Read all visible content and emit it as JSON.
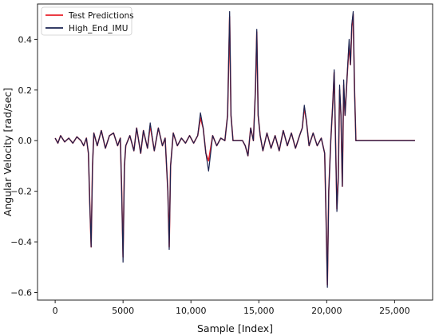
{
  "chart_data": {
    "type": "line",
    "title": "",
    "xlabel": "Sample [Index]",
    "ylabel": "Angular Velocity [rad/sec]",
    "xlim": [
      -1300,
      27800
    ],
    "ylim": [
      -0.63,
      0.54
    ],
    "xticks": [
      0,
      5000,
      10000,
      15000,
      20000,
      25000
    ],
    "xtick_labels": [
      "0",
      "5000",
      "10,000",
      "15,000",
      "20,000",
      "25,000"
    ],
    "yticks": [
      -0.6,
      -0.4,
      -0.2,
      0.0,
      0.2,
      0.4
    ],
    "ytick_labels": [
      "−0.6",
      "−0.4",
      "−0.2",
      "0.0",
      "0.2",
      "0.4"
    ],
    "grid": false,
    "legend_position": "top-left",
    "series": [
      {
        "name": "Test Predictions",
        "color": "#e8202a",
        "points": [
          [
            0,
            0.01
          ],
          [
            200,
            -0.01
          ],
          [
            400,
            0.02
          ],
          [
            700,
            -0.005
          ],
          [
            1000,
            0.01
          ],
          [
            1300,
            -0.01
          ],
          [
            1600,
            0.015
          ],
          [
            1900,
            0.0
          ],
          [
            2100,
            -0.02
          ],
          [
            2300,
            0.01
          ],
          [
            2450,
            -0.05
          ],
          [
            2550,
            -0.25
          ],
          [
            2650,
            -0.42
          ],
          [
            2750,
            -0.1
          ],
          [
            2850,
            0.03
          ],
          [
            3100,
            -0.02
          ],
          [
            3400,
            0.04
          ],
          [
            3700,
            -0.03
          ],
          [
            4000,
            0.02
          ],
          [
            4300,
            0.03
          ],
          [
            4600,
            -0.02
          ],
          [
            4800,
            0.01
          ],
          [
            4900,
            -0.2
          ],
          [
            5000,
            -0.46
          ],
          [
            5100,
            -0.1
          ],
          [
            5200,
            -0.02
          ],
          [
            5500,
            0.02
          ],
          [
            5800,
            -0.04
          ],
          [
            6000,
            0.05
          ],
          [
            6300,
            -0.05
          ],
          [
            6500,
            0.04
          ],
          [
            6800,
            -0.03
          ],
          [
            7000,
            0.06
          ],
          [
            7300,
            -0.04
          ],
          [
            7600,
            0.05
          ],
          [
            7900,
            -0.02
          ],
          [
            8100,
            0.01
          ],
          [
            8300,
            -0.2
          ],
          [
            8400,
            -0.42
          ],
          [
            8500,
            -0.1
          ],
          [
            8700,
            0.03
          ],
          [
            9000,
            -0.02
          ],
          [
            9300,
            0.01
          ],
          [
            9600,
            -0.01
          ],
          [
            9900,
            0.02
          ],
          [
            10200,
            -0.01
          ],
          [
            10500,
            0.02
          ],
          [
            10700,
            0.09
          ],
          [
            10900,
            0.05
          ],
          [
            11100,
            -0.05
          ],
          [
            11300,
            -0.08
          ],
          [
            11600,
            0.02
          ],
          [
            11900,
            -0.02
          ],
          [
            12200,
            0.01
          ],
          [
            12500,
            0.0
          ],
          [
            12700,
            0.1
          ],
          [
            12850,
            0.49
          ],
          [
            12950,
            0.1
          ],
          [
            13100,
            0.0
          ],
          [
            13800,
            0.0
          ],
          [
            14000,
            -0.02
          ],
          [
            14200,
            -0.06
          ],
          [
            14400,
            0.05
          ],
          [
            14600,
            0.0
          ],
          [
            14750,
            0.2
          ],
          [
            14850,
            0.43
          ],
          [
            14950,
            0.1
          ],
          [
            15100,
            0.02
          ],
          [
            15300,
            -0.04
          ],
          [
            15600,
            0.03
          ],
          [
            15900,
            -0.03
          ],
          [
            16200,
            0.02
          ],
          [
            16500,
            -0.04
          ],
          [
            16800,
            0.04
          ],
          [
            17100,
            -0.02
          ],
          [
            17400,
            0.03
          ],
          [
            17700,
            -0.03
          ],
          [
            18000,
            0.02
          ],
          [
            18200,
            0.05
          ],
          [
            18350,
            0.13
          ],
          [
            18500,
            0.08
          ],
          [
            18700,
            -0.02
          ],
          [
            19000,
            0.03
          ],
          [
            19300,
            -0.02
          ],
          [
            19600,
            0.01
          ],
          [
            19850,
            -0.05
          ],
          [
            19950,
            -0.3
          ],
          [
            20050,
            -0.57
          ],
          [
            20150,
            -0.2
          ],
          [
            20300,
            0.0
          ],
          [
            20450,
            0.15
          ],
          [
            20550,
            0.27
          ],
          [
            20650,
            0.0
          ],
          [
            20750,
            -0.27
          ],
          [
            20850,
            -0.15
          ],
          [
            20950,
            0.2
          ],
          [
            21050,
            0.1
          ],
          [
            21150,
            -0.18
          ],
          [
            21250,
            0.22
          ],
          [
            21350,
            0.1
          ],
          [
            21500,
            0.25
          ],
          [
            21650,
            0.38
          ],
          [
            21750,
            0.3
          ],
          [
            21850,
            0.45
          ],
          [
            21950,
            0.5
          ],
          [
            22050,
            0.2
          ],
          [
            22150,
            0.0
          ],
          [
            24000,
            0.0
          ],
          [
            26500,
            0.0
          ]
        ]
      },
      {
        "name": "High_End_IMU",
        "color": "#1a2350",
        "points": [
          [
            0,
            0.01
          ],
          [
            200,
            -0.01
          ],
          [
            400,
            0.02
          ],
          [
            700,
            -0.005
          ],
          [
            1000,
            0.01
          ],
          [
            1300,
            -0.01
          ],
          [
            1600,
            0.015
          ],
          [
            1900,
            0.0
          ],
          [
            2100,
            -0.02
          ],
          [
            2300,
            0.01
          ],
          [
            2450,
            -0.05
          ],
          [
            2550,
            -0.25
          ],
          [
            2650,
            -0.42
          ],
          [
            2750,
            -0.1
          ],
          [
            2850,
            0.03
          ],
          [
            3100,
            -0.02
          ],
          [
            3400,
            0.04
          ],
          [
            3700,
            -0.03
          ],
          [
            4000,
            0.02
          ],
          [
            4300,
            0.03
          ],
          [
            4600,
            -0.02
          ],
          [
            4800,
            0.01
          ],
          [
            4900,
            -0.2
          ],
          [
            5000,
            -0.48
          ],
          [
            5100,
            -0.1
          ],
          [
            5200,
            -0.02
          ],
          [
            5500,
            0.02
          ],
          [
            5800,
            -0.04
          ],
          [
            6000,
            0.05
          ],
          [
            6300,
            -0.05
          ],
          [
            6500,
            0.04
          ],
          [
            6800,
            -0.03
          ],
          [
            7000,
            0.07
          ],
          [
            7300,
            -0.04
          ],
          [
            7600,
            0.05
          ],
          [
            7900,
            -0.02
          ],
          [
            8100,
            0.01
          ],
          [
            8300,
            -0.2
          ],
          [
            8400,
            -0.43
          ],
          [
            8500,
            -0.1
          ],
          [
            8700,
            0.03
          ],
          [
            9000,
            -0.02
          ],
          [
            9300,
            0.01
          ],
          [
            9600,
            -0.01
          ],
          [
            9900,
            0.02
          ],
          [
            10200,
            -0.01
          ],
          [
            10500,
            0.02
          ],
          [
            10700,
            0.11
          ],
          [
            10900,
            0.05
          ],
          [
            11100,
            -0.05
          ],
          [
            11300,
            -0.12
          ],
          [
            11600,
            0.02
          ],
          [
            11900,
            -0.02
          ],
          [
            12200,
            0.01
          ],
          [
            12500,
            0.0
          ],
          [
            12700,
            0.1
          ],
          [
            12850,
            0.51
          ],
          [
            12950,
            0.1
          ],
          [
            13100,
            0.0
          ],
          [
            13800,
            0.0
          ],
          [
            14000,
            -0.02
          ],
          [
            14200,
            -0.06
          ],
          [
            14400,
            0.05
          ],
          [
            14600,
            0.0
          ],
          [
            14750,
            0.2
          ],
          [
            14850,
            0.44
          ],
          [
            14950,
            0.1
          ],
          [
            15100,
            0.02
          ],
          [
            15300,
            -0.04
          ],
          [
            15600,
            0.03
          ],
          [
            15900,
            -0.03
          ],
          [
            16200,
            0.02
          ],
          [
            16500,
            -0.04
          ],
          [
            16800,
            0.04
          ],
          [
            17100,
            -0.02
          ],
          [
            17400,
            0.03
          ],
          [
            17700,
            -0.03
          ],
          [
            18000,
            0.02
          ],
          [
            18200,
            0.05
          ],
          [
            18350,
            0.14
          ],
          [
            18500,
            0.08
          ],
          [
            18700,
            -0.02
          ],
          [
            19000,
            0.03
          ],
          [
            19300,
            -0.02
          ],
          [
            19600,
            0.01
          ],
          [
            19850,
            -0.05
          ],
          [
            19950,
            -0.3
          ],
          [
            20050,
            -0.58
          ],
          [
            20150,
            -0.2
          ],
          [
            20300,
            0.0
          ],
          [
            20450,
            0.15
          ],
          [
            20550,
            0.28
          ],
          [
            20650,
            0.0
          ],
          [
            20750,
            -0.28
          ],
          [
            20850,
            -0.15
          ],
          [
            20950,
            0.22
          ],
          [
            21050,
            0.1
          ],
          [
            21150,
            -0.18
          ],
          [
            21250,
            0.24
          ],
          [
            21350,
            0.1
          ],
          [
            21500,
            0.25
          ],
          [
            21650,
            0.4
          ],
          [
            21750,
            0.3
          ],
          [
            21850,
            0.46
          ],
          [
            21950,
            0.51
          ],
          [
            22050,
            0.2
          ],
          [
            22150,
            0.0
          ],
          [
            24000,
            0.0
          ],
          [
            26500,
            0.0
          ]
        ]
      }
    ]
  }
}
